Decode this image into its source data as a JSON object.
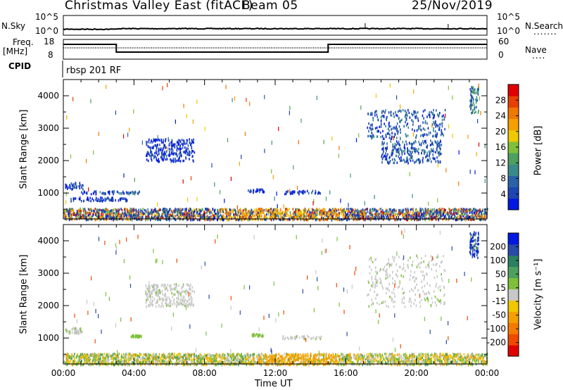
{
  "header": {
    "title": "Christmas Valley East (fitACF)",
    "beam": "Beam 05",
    "date": "25/Nov/2019"
  },
  "strip": {
    "nsky_label": "N.Sky",
    "nsky_ticks": [
      "10^5",
      "10^0"
    ],
    "nsearch_label": "N.Search",
    "nsearch_ticks": [
      "10^5",
      "10^0"
    ],
    "freq_label": "Freq.",
    "freq_unit": "[MHz]",
    "freq_ticks": [
      "18",
      "8"
    ],
    "nave_label": "Nave",
    "nave_ticks": [
      "60",
      "0"
    ],
    "cpid_label": "CPID",
    "cpid_value": "rbsp 201 RF"
  },
  "colors": {
    "power_scale": [
      "#0018e0",
      "#1f45b0",
      "#2a62a8",
      "#3b8a8a",
      "#4da060",
      "#7ec03a",
      "#f0c800",
      "#f5a000",
      "#f07800",
      "#e84000",
      "#e00000"
    ],
    "velocity_scale": [
      "#e00000",
      "#f04a00",
      "#f57a00",
      "#f5a000",
      "#f0c800",
      "#c8c8c8",
      "#7ec03a",
      "#4da060",
      "#2a8060",
      "#2a4aa8",
      "#0018e0"
    ]
  },
  "chart_data": [
    {
      "type": "heatmap",
      "panel": "power",
      "ylabel": "Slant Range [km]",
      "y_ticks": [
        1000,
        2000,
        3000,
        4000
      ],
      "ylim": [
        200,
        4500
      ],
      "x_ticks": [
        "00:00",
        "04:00",
        "08:00",
        "12:00",
        "16:00",
        "20:00",
        "00:00"
      ],
      "xlim_hours": [
        0,
        24
      ],
      "colorbar_label": "Power [dB]",
      "colorbar_ticks": [
        "4",
        "8",
        "12",
        "16",
        "20",
        "24",
        "28"
      ],
      "regions": [
        {
          "x": [
            0.0,
            24.0
          ],
          "y": [
            200,
            550
          ],
          "level": "mixed-ground-scatter"
        },
        {
          "x": [
            0.1,
            1.1
          ],
          "y": [
            1150,
            1350
          ],
          "level": 6
        },
        {
          "x": [
            0.4,
            3.6
          ],
          "y": [
            780,
            900
          ],
          "level": 6
        },
        {
          "x": [
            1.0,
            4.4
          ],
          "y": [
            1000,
            1100
          ],
          "level": 8
        },
        {
          "x": [
            4.6,
            7.4
          ],
          "y": [
            2000,
            2700
          ],
          "level": 6
        },
        {
          "x": [
            10.4,
            11.4
          ],
          "y": [
            1050,
            1150
          ],
          "level": 7
        },
        {
          "x": [
            12.4,
            14.6
          ],
          "y": [
            1000,
            1100
          ],
          "level": 7
        },
        {
          "x": [
            17.2,
            21.6
          ],
          "y": [
            2700,
            3600
          ],
          "level": 10
        },
        {
          "x": [
            18.0,
            21.4
          ],
          "y": [
            1950,
            2650
          ],
          "level": 9
        },
        {
          "x": [
            23.0,
            23.5
          ],
          "y": [
            3500,
            4300
          ],
          "level": 12
        }
      ]
    },
    {
      "type": "heatmap",
      "panel": "velocity",
      "ylabel": "Slant Range [km]",
      "y_ticks": [
        1000,
        2000,
        3000,
        4000
      ],
      "ylim": [
        200,
        4500
      ],
      "x_ticks": [
        "00:00",
        "04:00",
        "08:00",
        "12:00",
        "16:00",
        "20:00",
        "00:00"
      ],
      "xlim_hours": [
        0,
        24
      ],
      "xlabel": "Time UT",
      "colorbar_label": "Velocity [m s⁻¹]",
      "colorbar_ticks": [
        "-200",
        "-100",
        "-50",
        "-15",
        "15",
        "50",
        "100",
        "200"
      ],
      "regions": [
        {
          "x": [
            0.0,
            24.0
          ],
          "y": [
            200,
            550
          ],
          "level": "mixed-low-velocity"
        },
        {
          "x": [
            0.1,
            1.1
          ],
          "y": [
            1150,
            1350
          ],
          "level": "grey"
        },
        {
          "x": [
            3.8,
            4.4
          ],
          "y": [
            1050,
            1120
          ],
          "level": "green"
        },
        {
          "x": [
            4.6,
            7.4
          ],
          "y": [
            2000,
            2700
          ],
          "level": "grey"
        },
        {
          "x": [
            10.6,
            11.3
          ],
          "y": [
            1080,
            1160
          ],
          "level": "green"
        },
        {
          "x": [
            12.4,
            14.6
          ],
          "y": [
            1000,
            1100
          ],
          "level": "grey"
        },
        {
          "x": [
            17.2,
            21.6
          ],
          "y": [
            2000,
            3600
          ],
          "level": "grey"
        },
        {
          "x": [
            23.0,
            23.5
          ],
          "y": [
            3500,
            4300
          ],
          "level": "blue"
        }
      ]
    }
  ]
}
